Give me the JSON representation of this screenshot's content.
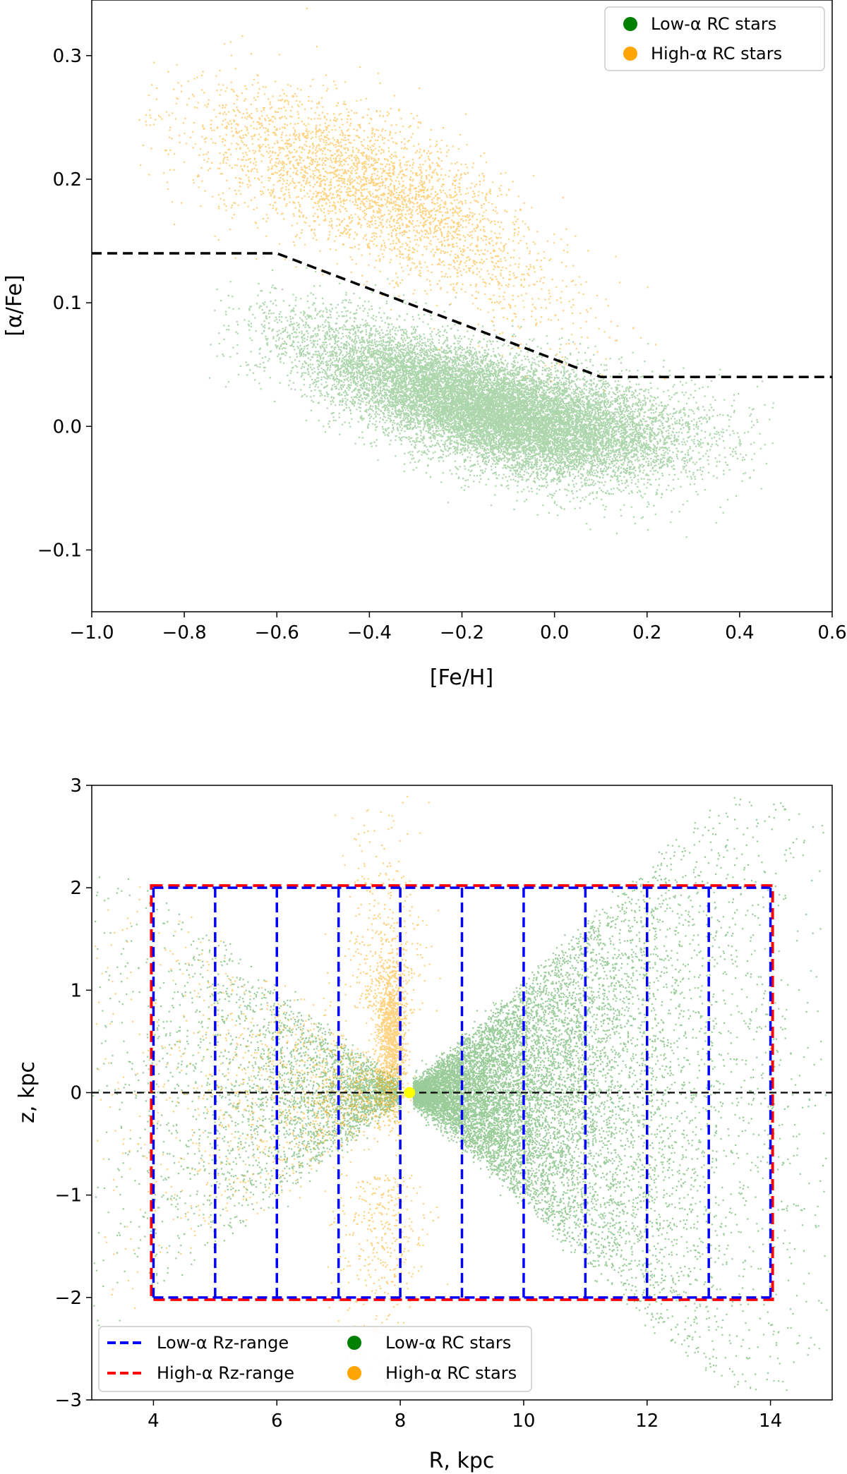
{
  "chart_data": [
    {
      "type": "scatter",
      "title": "",
      "xlabel": "[Fe/H]",
      "ylabel": "[α/Fe]",
      "xlim": [
        -1.0,
        0.6
      ],
      "ylim": [
        -0.15,
        0.345
      ],
      "xticks": [
        -1.0,
        -0.8,
        -0.6,
        -0.4,
        -0.2,
        0.0,
        0.2,
        0.4,
        0.6
      ],
      "xtick_labels": [
        "−1.0",
        "−0.8",
        "−0.6",
        "−0.4",
        "−0.2",
        "0.0",
        "0.2",
        "0.4",
        "0.6"
      ],
      "yticks": [
        -0.1,
        0.0,
        0.1,
        0.2,
        0.3
      ],
      "ytick_labels": [
        "−0.1",
        "0.0",
        "0.1",
        "0.2",
        "0.3"
      ],
      "series": [
        {
          "name": "Low-α RC stars",
          "color": "#008000",
          "approx_count": 30000,
          "description_points": {
            "ridge_fe": [
              -0.6,
              -0.4,
              -0.2,
              0.0,
              0.2,
              0.4
            ],
            "ridge_alpha": [
              0.075,
              0.045,
              0.02,
              0.0,
              -0.008,
              -0.01
            ]
          }
        },
        {
          "name": "High-α RC stars",
          "color": "#ffa500",
          "approx_count": 5000,
          "description_points": {
            "ridge_fe": [
              -0.8,
              -0.6,
              -0.4,
              -0.2,
              0.0,
              0.2
            ],
            "ridge_alpha": [
              0.24,
              0.22,
              0.195,
              0.16,
              0.105,
              0.07
            ]
          }
        }
      ],
      "divider": {
        "style": "black dashed",
        "x": [
          -1.0,
          -0.6,
          0.1,
          0.6
        ],
        "y": [
          0.14,
          0.14,
          0.04,
          0.04
        ]
      },
      "legend": {
        "location": "upper-right",
        "entries": [
          "Low-α RC stars",
          "High-α RC stars"
        ]
      }
    },
    {
      "type": "scatter",
      "title": "",
      "xlabel": "R,  kpc",
      "ylabel": "z,  kpc",
      "xlim": [
        3,
        15
      ],
      "ylim": [
        -3,
        3
      ],
      "xticks": [
        4,
        6,
        8,
        10,
        12,
        14
      ],
      "xtick_labels": [
        "4",
        "6",
        "8",
        "10",
        "12",
        "14"
      ],
      "yticks": [
        -3,
        -2,
        -1,
        0,
        1,
        2,
        3
      ],
      "ytick_labels": [
        "−3",
        "−2",
        "−1",
        "0",
        "1",
        "2",
        "3"
      ],
      "series": [
        {
          "name": "Low-α RC stars",
          "color": "#008000",
          "approx_count": 30000
        },
        {
          "name": "High-α RC stars",
          "color": "#ffa500",
          "approx_count": 5000
        }
      ],
      "sun_marker": {
        "R": 8.15,
        "z": 0.0,
        "color": "#ffff00"
      },
      "midplane": {
        "style": "black dashed",
        "z": 0
      },
      "low_alpha_rz_range": {
        "color": "#0000ff",
        "R_edges": [
          4,
          5,
          6,
          7,
          8,
          9,
          10,
          11,
          12,
          13,
          14
        ],
        "z_range": [
          -2,
          2
        ]
      },
      "high_alpha_rz_range": {
        "color": "#ff0000",
        "R_range": [
          4,
          14
        ],
        "z_range": [
          -2,
          2
        ]
      },
      "legend": {
        "location": "lower-left",
        "entries": [
          "Low-α Rz-range",
          "High-α Rz-range",
          "Low-α RC stars",
          "High-α RC stars"
        ]
      }
    }
  ]
}
